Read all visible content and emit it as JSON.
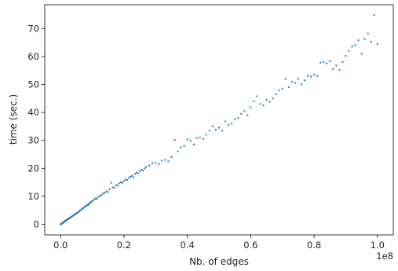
{
  "chart_data": {
    "type": "scatter",
    "title": "",
    "xlabel": "Nb. of edges",
    "ylabel": "time (sec.)",
    "x_offset_label": "1e8",
    "xlim": [
      -0.05,
      1.05
    ],
    "ylim": [
      -3.8,
      78.5
    ],
    "x_scale_exponent": 8,
    "x_ticks": [
      0.0,
      0.2,
      0.4,
      0.6,
      0.8,
      1.0
    ],
    "x_tick_labels": [
      "0.0",
      "0.2",
      "0.4",
      "0.6",
      "0.8",
      "1.0"
    ],
    "y_ticks": [
      0,
      10,
      20,
      30,
      40,
      50,
      60,
      70
    ],
    "y_tick_labels": [
      "0",
      "10",
      "20",
      "30",
      "40",
      "50",
      "60",
      "70"
    ],
    "grid": false,
    "legend": "none",
    "marker_color": "#1f77b4",
    "series": [
      {
        "points": [
          [
            0.0,
            0.0
          ],
          [
            0.002,
            0.1
          ],
          [
            0.003,
            0.2
          ],
          [
            0.004,
            0.3
          ],
          [
            0.005,
            0.2
          ],
          [
            0.006,
            0.4
          ],
          [
            0.007,
            0.5
          ],
          [
            0.008,
            0.6
          ],
          [
            0.009,
            0.7
          ],
          [
            0.01,
            0.8
          ],
          [
            0.011,
            0.9
          ],
          [
            0.012,
            1.0
          ],
          [
            0.013,
            1.0
          ],
          [
            0.014,
            1.1
          ],
          [
            0.015,
            1.2
          ],
          [
            0.016,
            1.3
          ],
          [
            0.017,
            1.4
          ],
          [
            0.018,
            1.5
          ],
          [
            0.02,
            1.6
          ],
          [
            0.021,
            1.7
          ],
          [
            0.022,
            1.7
          ],
          [
            0.024,
            1.9
          ],
          [
            0.025,
            2.0
          ],
          [
            0.027,
            2.1
          ],
          [
            0.028,
            2.2
          ],
          [
            0.03,
            2.3
          ],
          [
            0.032,
            2.5
          ],
          [
            0.034,
            2.7
          ],
          [
            0.036,
            2.8
          ],
          [
            0.038,
            3.0
          ],
          [
            0.04,
            3.1
          ],
          [
            0.042,
            3.2
          ],
          [
            0.044,
            3.4
          ],
          [
            0.046,
            3.6
          ],
          [
            0.048,
            3.8
          ],
          [
            0.05,
            3.9
          ],
          [
            0.053,
            4.1
          ],
          [
            0.055,
            4.3
          ],
          [
            0.058,
            4.5
          ],
          [
            0.06,
            4.8
          ],
          [
            0.062,
            5.0
          ],
          [
            0.065,
            5.2
          ],
          [
            0.068,
            5.5
          ],
          [
            0.07,
            5.7
          ],
          [
            0.073,
            5.9
          ],
          [
            0.076,
            6.2
          ],
          [
            0.078,
            6.4
          ],
          [
            0.081,
            6.6
          ],
          [
            0.085,
            6.9
          ],
          [
            0.088,
            7.2
          ],
          [
            0.09,
            7.0
          ],
          [
            0.092,
            7.6
          ],
          [
            0.095,
            7.9
          ],
          [
            0.098,
            8.1
          ],
          [
            0.1,
            8.3
          ],
          [
            0.105,
            8.7
          ],
          [
            0.108,
            9.0
          ],
          [
            0.112,
            9.3
          ],
          [
            0.115,
            9.0
          ],
          [
            0.12,
            9.8
          ],
          [
            0.125,
            10.2
          ],
          [
            0.13,
            10.6
          ],
          [
            0.135,
            11.0
          ],
          [
            0.14,
            11.3
          ],
          [
            0.145,
            11.8
          ],
          [
            0.15,
            11.5
          ],
          [
            0.155,
            12.5
          ],
          [
            0.16,
            14.8
          ],
          [
            0.165,
            13.2
          ],
          [
            0.17,
            13.0
          ],
          [
            0.175,
            14.0
          ],
          [
            0.18,
            13.8
          ],
          [
            0.185,
            14.6
          ],
          [
            0.19,
            15.0
          ],
          [
            0.195,
            14.8
          ],
          [
            0.2,
            15.5
          ],
          [
            0.205,
            16.0
          ],
          [
            0.21,
            15.8
          ],
          [
            0.215,
            16.5
          ],
          [
            0.22,
            17.0
          ],
          [
            0.225,
            17.3
          ],
          [
            0.23,
            16.8
          ],
          [
            0.235,
            18.0
          ],
          [
            0.24,
            18.5
          ],
          [
            0.245,
            18.2
          ],
          [
            0.25,
            19.0
          ],
          [
            0.255,
            19.5
          ],
          [
            0.26,
            19.2
          ],
          [
            0.265,
            20.0
          ],
          [
            0.27,
            20.5
          ],
          [
            0.28,
            21.0
          ],
          [
            0.29,
            21.8
          ],
          [
            0.3,
            22.0
          ],
          [
            0.31,
            21.5
          ],
          [
            0.32,
            22.8
          ],
          [
            0.33,
            23.0
          ],
          [
            0.34,
            22.5
          ],
          [
            0.35,
            24.0
          ],
          [
            0.36,
            30.2
          ],
          [
            0.37,
            26.0
          ],
          [
            0.38,
            27.5
          ],
          [
            0.39,
            28.0
          ],
          [
            0.4,
            30.3
          ],
          [
            0.41,
            29.8
          ],
          [
            0.42,
            28.5
          ],
          [
            0.43,
            30.8
          ],
          [
            0.44,
            31.0
          ],
          [
            0.45,
            30.5
          ],
          [
            0.46,
            32.0
          ],
          [
            0.47,
            33.5
          ],
          [
            0.48,
            35.0
          ],
          [
            0.49,
            33.8
          ],
          [
            0.5,
            34.5
          ],
          [
            0.51,
            33.5
          ],
          [
            0.52,
            36.8
          ],
          [
            0.53,
            35.5
          ],
          [
            0.54,
            36.0
          ],
          [
            0.55,
            37.5
          ],
          [
            0.56,
            38.0
          ],
          [
            0.57,
            39.5
          ],
          [
            0.58,
            40.5
          ],
          [
            0.59,
            39.0
          ],
          [
            0.6,
            41.8
          ],
          [
            0.61,
            44.0
          ],
          [
            0.62,
            45.8
          ],
          [
            0.63,
            43.0
          ],
          [
            0.64,
            42.5
          ],
          [
            0.65,
            44.5
          ],
          [
            0.66,
            43.8
          ],
          [
            0.67,
            45.0
          ],
          [
            0.68,
            46.5
          ],
          [
            0.69,
            47.8
          ],
          [
            0.7,
            48.5
          ],
          [
            0.71,
            52.0
          ],
          [
            0.72,
            49.0
          ],
          [
            0.73,
            51.0
          ],
          [
            0.74,
            50.5
          ],
          [
            0.75,
            52.0
          ],
          [
            0.76,
            50.0
          ],
          [
            0.77,
            51.5
          ],
          [
            0.78,
            53.0
          ],
          [
            0.79,
            52.8
          ],
          [
            0.8,
            53.5
          ],
          [
            0.81,
            53.0
          ],
          [
            0.82,
            57.8
          ],
          [
            0.83,
            58.0
          ],
          [
            0.84,
            57.5
          ],
          [
            0.85,
            58.3
          ],
          [
            0.86,
            55.5
          ],
          [
            0.87,
            56.8
          ],
          [
            0.88,
            55.2
          ],
          [
            0.89,
            58.0
          ],
          [
            0.9,
            60.2
          ],
          [
            0.91,
            62.0
          ],
          [
            0.92,
            63.5
          ],
          [
            0.93,
            64.0
          ],
          [
            0.94,
            65.8
          ],
          [
            0.95,
            61.0
          ],
          [
            0.96,
            66.2
          ],
          [
            0.97,
            68.2
          ],
          [
            0.98,
            65.3
          ],
          [
            0.99,
            74.8
          ],
          [
            1.0,
            64.5
          ]
        ]
      }
    ]
  }
}
